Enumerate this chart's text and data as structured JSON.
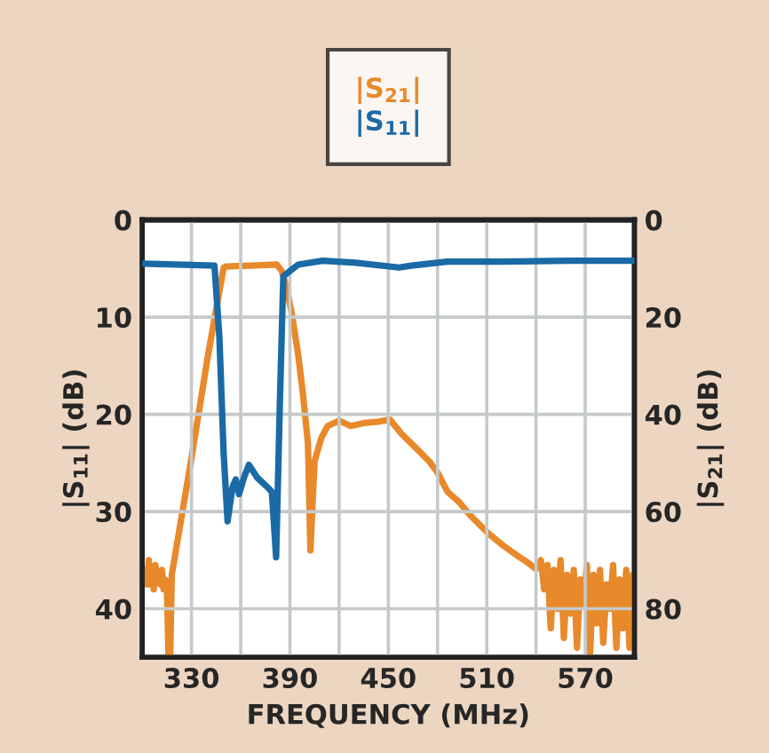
{
  "chart_data": {
    "type": "line",
    "xlabel": "FREQUENCY (MHz)",
    "ylabel": "|S$_{11}$| (dB)",
    "y2label": "|S$_{21}$| (dB)",
    "series": [
      {
        "name": "|S$_{21}$|",
        "color": "#e8892b",
        "axis": "y2",
        "x": [
          300,
          302,
          303,
          304,
          305,
          306,
          307,
          308,
          309,
          310,
          311,
          312,
          313,
          314,
          315,
          316,
          317,
          318,
          330,
          340,
          349.6,
          351,
          366,
          382,
          385,
          388,
          391,
          395,
          398,
          401,
          402.5,
          405,
          409,
          413,
          420,
          427,
          435,
          444,
          451,
          458,
          464,
          470,
          475,
          480,
          486,
          493,
          500,
          505,
          511,
          520,
          529.6,
          535,
          540,
          543,
          545,
          547,
          549,
          551,
          553,
          555,
          557,
          559,
          561,
          563,
          565,
          567,
          569,
          571,
          573,
          575,
          577,
          579,
          581,
          583,
          585,
          587,
          589,
          591,
          593,
          595,
          597,
          599,
          600
        ],
        "values": [
          74,
          72,
          75,
          70,
          75,
          72,
          76,
          71,
          74,
          73,
          75,
          72,
          76,
          74,
          75,
          90,
          90,
          73,
          49,
          28,
          9.8,
          9.6,
          9.4,
          9.2,
          10.5,
          14,
          19,
          27.6,
          36,
          46,
          68,
          49.7,
          45,
          42.4,
          41.3,
          42.4,
          41.8,
          41.5,
          41.1,
          44,
          46,
          48,
          49.7,
          52,
          55.9,
          58,
          60.8,
          62.5,
          64.5,
          67,
          69.3,
          70.5,
          71.8,
          70,
          76,
          71,
          84,
          72,
          80,
          70,
          86,
          73,
          81,
          72,
          88,
          74,
          79,
          71,
          89,
          73,
          83,
          72,
          87,
          75,
          80,
          71,
          88,
          74,
          84,
          72,
          88,
          73,
          76
        ]
      },
      {
        "name": "|S$_{11}$|",
        "color": "#1a6aa6",
        "x": [
          300,
          320,
          344,
          347,
          349.6,
          352,
          355,
          357,
          359,
          362,
          365,
          370,
          377,
          379,
          381.6,
          384,
          386,
          395,
          410,
          430,
          456.5,
          464,
          486,
          520,
          560,
          600
        ],
        "values": [
          4.5,
          4.6,
          4.7,
          12,
          24,
          31,
          27.5,
          26.7,
          28.2,
          26.5,
          25.2,
          26.5,
          27.6,
          28,
          34.7,
          18,
          5.8,
          4.6,
          4.2,
          4.4,
          4.9,
          4.7,
          4.3,
          4.3,
          4.2,
          4.2
        ]
      }
    ],
    "xlim": [
      300,
      600
    ],
    "xticks": [
      {
        "value": 300,
        "label": null
      },
      330,
      {
        "value": 360,
        "label": null
      },
      390,
      {
        "value": 420,
        "label": null
      },
      450,
      {
        "value": 480,
        "label": null
      },
      510,
      {
        "value": 540,
        "label": null
      },
      570,
      {
        "value": 600,
        "label": null
      }
    ],
    "ylim": [
      45,
      0
    ],
    "yticks": [
      0,
      10,
      20,
      30,
      40
    ],
    "y2lim": [
      90,
      0
    ],
    "y2ticks": [
      0,
      20,
      40,
      60,
      80
    ],
    "grid": true,
    "legend": "top",
    "line_style": "solid",
    "marker": "none"
  }
}
